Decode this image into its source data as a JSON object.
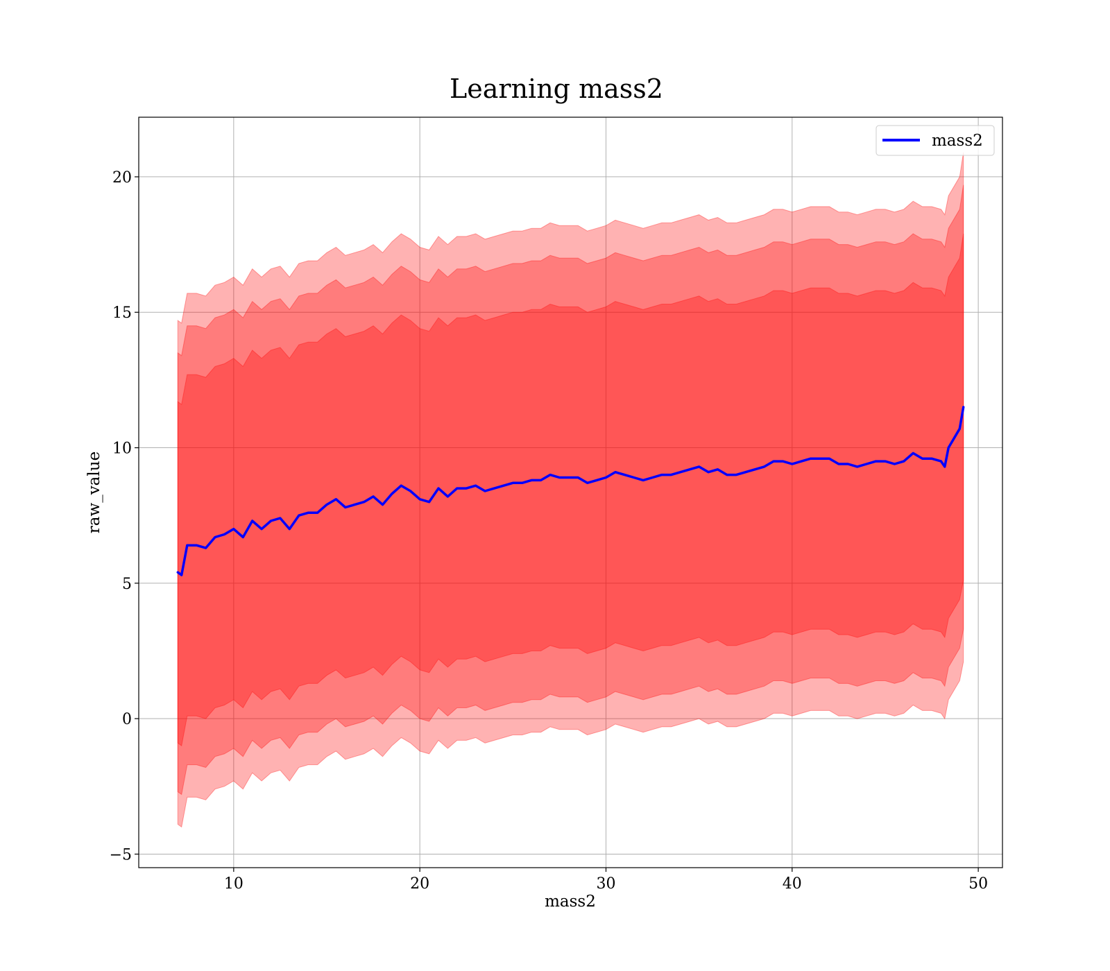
{
  "chart_data": {
    "type": "line",
    "title": "Learning mass2",
    "xlabel": "mass2",
    "ylabel": "raw_value",
    "xlim": [
      4.9,
      51.3
    ],
    "ylim": [
      -5.5,
      22.2
    ],
    "xticks": [
      10,
      20,
      30,
      40,
      50
    ],
    "xtick_labels": [
      "10",
      "20",
      "30",
      "40",
      "50"
    ],
    "yticks": [
      -5,
      0,
      5,
      10,
      15,
      20
    ],
    "ytick_labels": [
      "−5",
      "0",
      "5",
      "10",
      "15",
      "20"
    ],
    "grid": true,
    "legend_position": "top-right",
    "series": [
      {
        "name": "mass2",
        "color": "#0000ff",
        "x": [
          7.0,
          7.2,
          7.5,
          8.0,
          8.5,
          9.0,
          9.5,
          10.0,
          10.5,
          11.0,
          11.5,
          12.0,
          12.5,
          13.0,
          13.5,
          14.0,
          14.5,
          15.0,
          15.5,
          16.0,
          16.5,
          17.0,
          17.5,
          18.0,
          18.5,
          19.0,
          19.5,
          20.0,
          20.5,
          21.0,
          21.5,
          22.0,
          22.5,
          23.0,
          23.5,
          24.0,
          24.5,
          25.0,
          25.5,
          26.0,
          26.5,
          27.0,
          27.5,
          28.0,
          28.5,
          29.0,
          29.5,
          30.0,
          30.5,
          31.0,
          31.5,
          32.0,
          32.5,
          33.0,
          33.5,
          34.0,
          34.5,
          35.0,
          35.5,
          36.0,
          36.5,
          37.0,
          37.5,
          38.0,
          38.5,
          39.0,
          39.5,
          40.0,
          40.5,
          41.0,
          41.5,
          42.0,
          42.5,
          43.0,
          43.5,
          44.0,
          44.5,
          45.0,
          45.5,
          46.0,
          46.5,
          47.0,
          47.5,
          48.0,
          48.2,
          48.4,
          49.0,
          49.2
        ],
        "y": [
          5.4,
          5.3,
          6.4,
          6.4,
          6.3,
          6.7,
          6.8,
          7.0,
          6.7,
          7.3,
          7.0,
          7.3,
          7.4,
          7.0,
          7.5,
          7.6,
          7.6,
          7.9,
          8.1,
          7.8,
          7.9,
          8.0,
          8.2,
          7.9,
          8.3,
          8.6,
          8.4,
          8.1,
          8.0,
          8.5,
          8.2,
          8.5,
          8.5,
          8.6,
          8.4,
          8.5,
          8.6,
          8.7,
          8.7,
          8.8,
          8.8,
          9.0,
          8.9,
          8.9,
          8.9,
          8.7,
          8.8,
          8.9,
          9.1,
          9.0,
          8.9,
          8.8,
          8.9,
          9.0,
          9.0,
          9.1,
          9.2,
          9.3,
          9.1,
          9.2,
          9.0,
          9.0,
          9.1,
          9.2,
          9.3,
          9.5,
          9.5,
          9.4,
          9.5,
          9.6,
          9.6,
          9.6,
          9.4,
          9.4,
          9.3,
          9.4,
          9.5,
          9.5,
          9.4,
          9.5,
          9.8,
          9.6,
          9.6,
          9.5,
          9.3,
          10.0,
          10.7,
          11.5
        ]
      }
    ],
    "bands": [
      {
        "label": "",
        "color": "#ff0000",
        "opacity": 0.3,
        "offset": 9.3,
        "offset_end": 9.4
      },
      {
        "label": "",
        "color": "#ff0000",
        "opacity": 0.3,
        "offset": 8.1,
        "offset_end": 8.2
      },
      {
        "label": "",
        "color": "#ff0000",
        "opacity": 0.3,
        "offset": 6.3,
        "offset_end": 6.4
      }
    ]
  }
}
